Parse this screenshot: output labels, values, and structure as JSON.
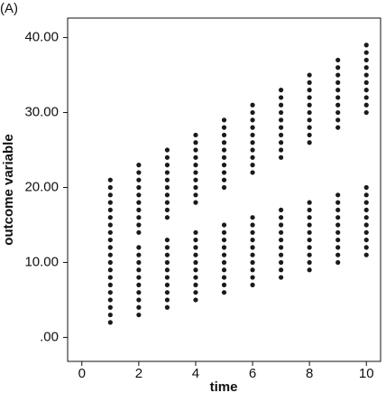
{
  "chart_data": {
    "type": "scatter",
    "panel_label": "(A)",
    "x_label": "time",
    "y_label": "outcome variable",
    "color": "#1a1a1a",
    "xlim": [
      -0.5,
      10.5
    ],
    "xticks": [
      0,
      2,
      4,
      6,
      8,
      10
    ],
    "ylim": [
      -3.2,
      42.6
    ],
    "yticks": [
      {
        "value": 0,
        "label": ".00"
      },
      {
        "value": 10,
        "label": "10.00"
      },
      {
        "value": 20,
        "label": "20.00"
      },
      {
        "value": 30,
        "label": "30.00"
      },
      {
        "value": 40,
        "label": "40.00"
      }
    ],
    "x": [
      1,
      1,
      1,
      1,
      1,
      1,
      1,
      1,
      1,
      1,
      1,
      1,
      1,
      1,
      1,
      1,
      1,
      1,
      1,
      1,
      2,
      2,
      2,
      2,
      2,
      2,
      2,
      2,
      2,
      2,
      2,
      2,
      2,
      2,
      2,
      2,
      2,
      2,
      2,
      2,
      3,
      3,
      3,
      3,
      3,
      3,
      3,
      3,
      3,
      3,
      3,
      3,
      3,
      3,
      3,
      3,
      3,
      3,
      3,
      3,
      4,
      4,
      4,
      4,
      4,
      4,
      4,
      4,
      4,
      4,
      4,
      4,
      4,
      4,
      4,
      4,
      4,
      4,
      4,
      4,
      5,
      5,
      5,
      5,
      5,
      5,
      5,
      5,
      5,
      5,
      5,
      5,
      5,
      5,
      5,
      5,
      5,
      5,
      5,
      5,
      6,
      6,
      6,
      6,
      6,
      6,
      6,
      6,
      6,
      6,
      6,
      6,
      6,
      6,
      6,
      6,
      6,
      6,
      6,
      6,
      7,
      7,
      7,
      7,
      7,
      7,
      7,
      7,
      7,
      7,
      7,
      7,
      7,
      7,
      7,
      7,
      7,
      7,
      7,
      7,
      8,
      8,
      8,
      8,
      8,
      8,
      8,
      8,
      8,
      8,
      8,
      8,
      8,
      8,
      8,
      8,
      8,
      8,
      8,
      8,
      9,
      9,
      9,
      9,
      9,
      9,
      9,
      9,
      9,
      9,
      9,
      9,
      9,
      9,
      9,
      9,
      9,
      9,
      9,
      9,
      10,
      10,
      10,
      10,
      10,
      10,
      10,
      10,
      10,
      10,
      10,
      10,
      10,
      10,
      10,
      10,
      10,
      10,
      10,
      10
    ],
    "values": [
      2,
      3,
      4,
      5,
      6,
      7,
      8,
      9,
      10,
      11,
      12,
      13,
      14,
      15,
      16,
      17,
      18,
      19,
      20,
      21,
      3,
      4,
      5,
      6,
      7,
      8,
      9,
      10,
      11,
      12,
      14,
      15,
      16,
      17,
      18,
      19,
      20,
      21,
      22,
      23,
      4,
      5,
      6,
      7,
      8,
      9,
      10,
      11,
      12,
      13,
      16,
      17,
      18,
      19,
      20,
      21,
      22,
      23,
      24,
      25,
      5,
      6,
      7,
      8,
      9,
      10,
      11,
      12,
      13,
      14,
      18,
      19,
      20,
      21,
      22,
      23,
      24,
      25,
      26,
      27,
      6,
      7,
      8,
      9,
      10,
      11,
      12,
      13,
      14,
      15,
      20,
      21,
      22,
      23,
      24,
      25,
      26,
      27,
      28,
      29,
      7,
      8,
      9,
      10,
      11,
      12,
      13,
      14,
      15,
      16,
      22,
      23,
      24,
      25,
      26,
      27,
      28,
      29,
      30,
      31,
      8,
      9,
      10,
      11,
      12,
      13,
      14,
      15,
      16,
      17,
      24,
      25,
      26,
      27,
      28,
      29,
      30,
      31,
      32,
      33,
      9,
      10,
      11,
      12,
      13,
      14,
      15,
      16,
      17,
      18,
      26,
      27,
      28,
      29,
      30,
      31,
      32,
      33,
      34,
      35,
      10,
      11,
      12,
      13,
      14,
      15,
      16,
      17,
      18,
      19,
      28,
      29,
      30,
      31,
      32,
      33,
      34,
      35,
      36,
      37,
      11,
      12,
      13,
      14,
      15,
      16,
      17,
      18,
      19,
      20,
      30,
      31,
      32,
      33,
      34,
      35,
      36,
      37,
      38,
      39
    ]
  }
}
